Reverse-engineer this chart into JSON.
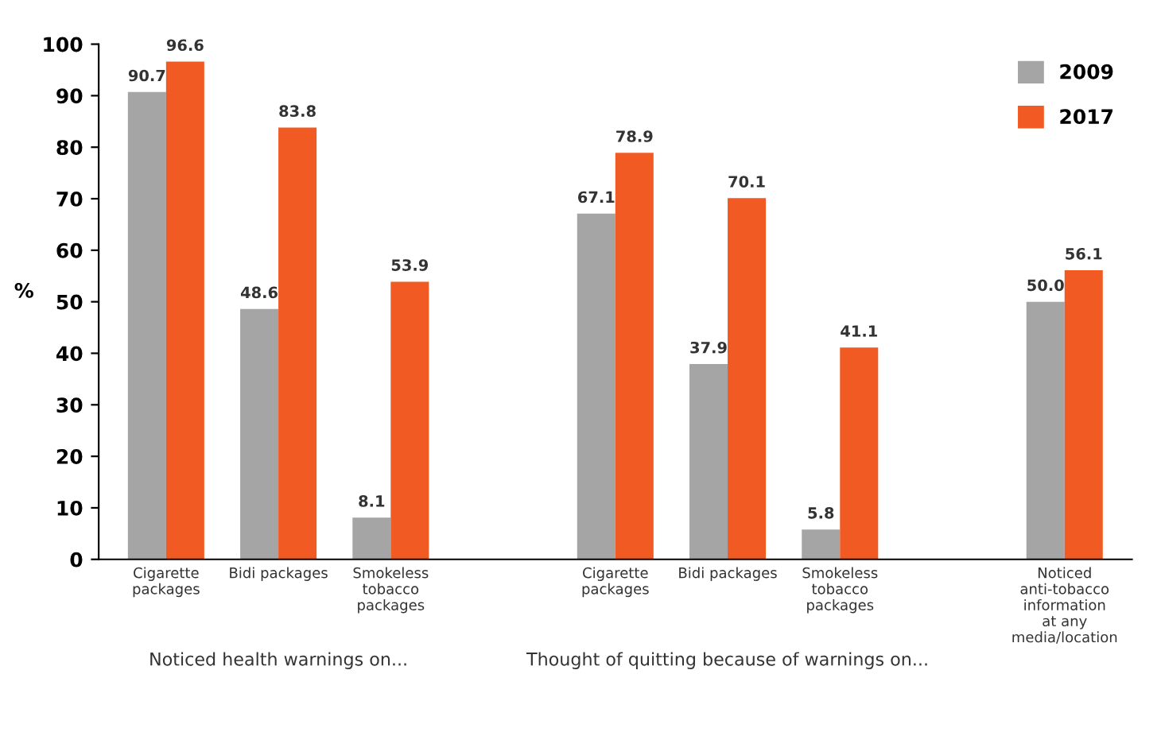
{
  "chart_data": {
    "type": "bar",
    "ylabel": "%",
    "categories": [
      "Cigarette\npackages",
      "Bidi packages",
      "Smokeless\ntobacco\npackages",
      null,
      "Cigarette\npackages",
      "Bidi packages",
      "Smokeless\ntobacco\npackages",
      null,
      "Noticed\nanti-tobacco\ninformation\nat any\nmedia/location"
    ],
    "series": [
      {
        "name": "2009",
        "color": "#a5a5a5",
        "values": [
          90.7,
          48.6,
          8.1,
          null,
          67.1,
          37.9,
          5.8,
          null,
          50.0
        ],
        "value_labels": [
          "90.7",
          "48.6",
          "8.1",
          null,
          "67.1",
          "37.9",
          "5.8",
          null,
          "50.0"
        ]
      },
      {
        "name": "2017",
        "color": "#f15a22",
        "values": [
          96.6,
          83.8,
          53.9,
          null,
          78.9,
          70.1,
          41.1,
          null,
          56.1
        ],
        "value_labels": [
          "96.6",
          "83.8",
          "53.9",
          null,
          "78.9",
          "70.1",
          "41.1",
          null,
          "56.1"
        ]
      }
    ],
    "annotations": [
      "Noticed health warnings on...",
      "Thought of quitting because of warnings on..."
    ],
    "ylim": [
      0,
      100
    ],
    "yticks": [
      0,
      10,
      20,
      30,
      40,
      50,
      60,
      70,
      80,
      90,
      100
    ],
    "grid": false,
    "legend": "top right"
  }
}
